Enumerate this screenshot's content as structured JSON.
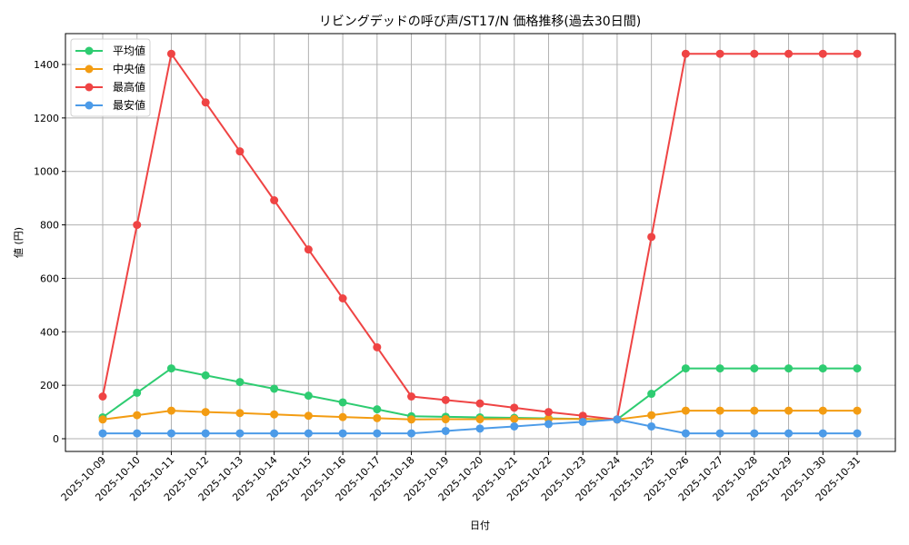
{
  "chart_data": {
    "type": "line",
    "title": "リビングデッドの呼び声/ST17/N 価格推移(過去30日間)",
    "xlabel": "日付",
    "ylabel": "値 (円)",
    "ylim": [
      -50,
      1510
    ],
    "yticks": [
      0,
      200,
      400,
      600,
      800,
      1000,
      1200,
      1400
    ],
    "grid": true,
    "legend_position": "upper left",
    "x": [
      "2025-10-09",
      "2025-10-10",
      "2025-10-11",
      "2025-10-12",
      "2025-10-13",
      "2025-10-14",
      "2025-10-15",
      "2025-10-16",
      "2025-10-17",
      "2025-10-18",
      "2025-10-19",
      "2025-10-20",
      "2025-10-21",
      "2025-10-22",
      "2025-10-23",
      "2025-10-24",
      "2025-10-25",
      "2025-10-26",
      "2025-10-27",
      "2025-10-28",
      "2025-10-29",
      "2025-10-30",
      "2025-10-31"
    ],
    "series": [
      {
        "name": "平均値",
        "color": "#2ecc71",
        "values": [
          80,
          172,
          263,
          237,
          212,
          187,
          161,
          136,
          110,
          84,
          82,
          80,
          78,
          76,
          74,
          72,
          168,
          263,
          263,
          263,
          263,
          263,
          263
        ]
      },
      {
        "name": "中央値",
        "color": "#f39c12",
        "values": [
          72,
          88,
          105,
          100,
          96,
          91,
          86,
          81,
          77,
          72,
          73,
          73,
          74,
          74,
          74,
          72,
          88,
          105,
          105,
          105,
          105,
          105,
          105
        ]
      },
      {
        "name": "最高値",
        "color": "#ef4444",
        "values": [
          158,
          800,
          1440,
          1258,
          1075,
          892,
          708,
          525,
          342,
          158,
          145,
          132,
          116,
          100,
          86,
          72,
          755,
          1440,
          1440,
          1440,
          1440,
          1440,
          1440
        ]
      },
      {
        "name": "最安値",
        "color": "#4c9be8",
        "values": [
          20,
          20,
          20,
          20,
          20,
          20,
          20,
          20,
          20,
          20,
          29,
          38,
          46,
          55,
          63,
          72,
          46,
          20,
          20,
          20,
          20,
          20,
          20
        ]
      }
    ]
  }
}
